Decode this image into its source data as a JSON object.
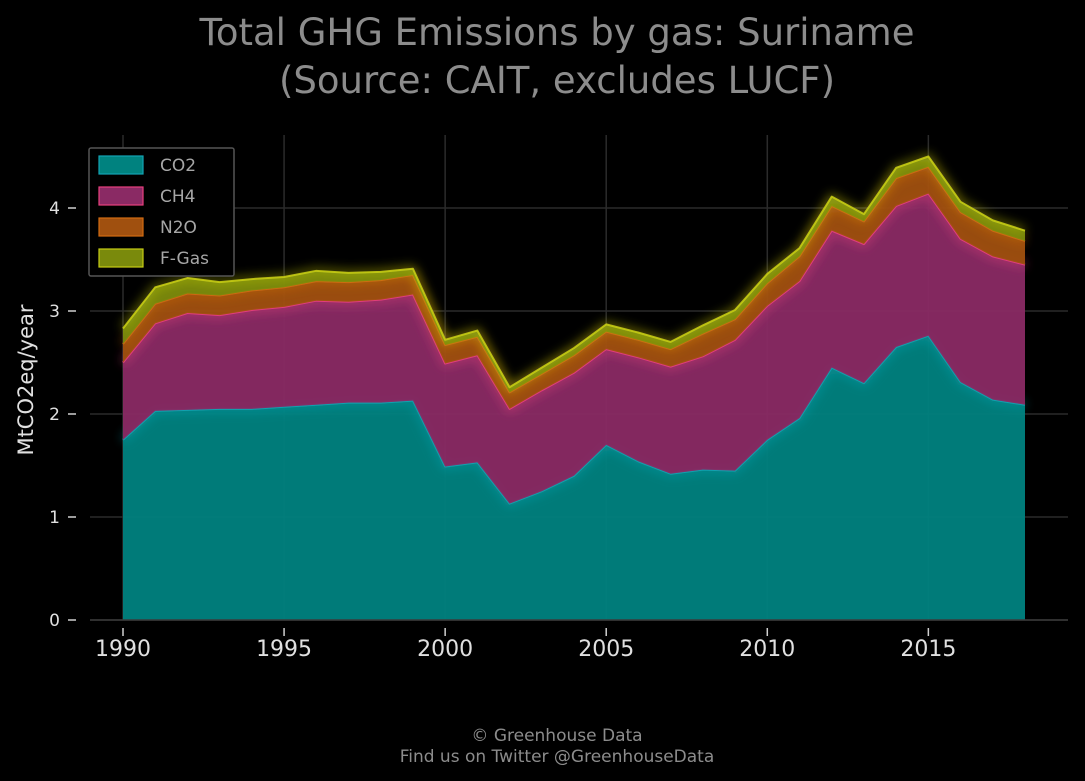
{
  "chart_data": {
    "type": "area",
    "stacked": true,
    "title": "Total GHG Emissions by gas: Suriname",
    "subtitle": "(Source: CAIT, excludes LUCF)",
    "xlabel": "",
    "ylabel": "MtCO2eq/year",
    "xlim": [
      1990,
      2018
    ],
    "ylim": [
      0,
      4.6
    ],
    "x_ticks": [
      1990,
      1995,
      2000,
      2005,
      2010,
      2015
    ],
    "y_ticks": [
      0,
      1,
      2,
      3,
      4
    ],
    "grid": true,
    "legend_position": "top-left",
    "x": [
      1990,
      1991,
      1992,
      1993,
      1994,
      1995,
      1996,
      1997,
      1998,
      1999,
      2000,
      2001,
      2002,
      2003,
      2004,
      2005,
      2006,
      2007,
      2008,
      2009,
      2010,
      2011,
      2012,
      2013,
      2014,
      2015,
      2016,
      2017,
      2018
    ],
    "series": [
      {
        "name": "CO2",
        "color": "#00827f",
        "line_color": "#13a4b4",
        "values": [
          1.75,
          2.03,
          2.04,
          2.05,
          2.05,
          2.07,
          2.09,
          2.11,
          2.11,
          2.13,
          1.49,
          1.53,
          1.13,
          1.25,
          1.4,
          1.7,
          1.54,
          1.42,
          1.46,
          1.45,
          1.75,
          1.96,
          2.45,
          2.3,
          2.65,
          2.76,
          2.31,
          2.14,
          2.09
        ]
      },
      {
        "name": "CH4",
        "color": "#8a2a64",
        "line_color": "#e8407e",
        "values": [
          0.75,
          0.85,
          0.94,
          0.91,
          0.96,
          0.97,
          1.01,
          0.98,
          1.0,
          1.03,
          1.0,
          1.04,
          0.92,
          0.98,
          1.0,
          0.93,
          1.01,
          1.04,
          1.1,
          1.27,
          1.3,
          1.33,
          1.33,
          1.35,
          1.37,
          1.38,
          1.39,
          1.39,
          1.36
        ]
      },
      {
        "name": "N2O",
        "color": "#a0500f",
        "line_color": "#d26a12",
        "values": [
          0.18,
          0.19,
          0.19,
          0.19,
          0.19,
          0.19,
          0.19,
          0.19,
          0.19,
          0.19,
          0.18,
          0.18,
          0.16,
          0.16,
          0.17,
          0.17,
          0.17,
          0.17,
          0.22,
          0.2,
          0.22,
          0.24,
          0.24,
          0.22,
          0.27,
          0.26,
          0.26,
          0.25,
          0.23
        ]
      },
      {
        "name": "F-Gas",
        "color": "#7a8a0c",
        "line_color": "#c6cc14",
        "values": [
          0.15,
          0.16,
          0.15,
          0.13,
          0.11,
          0.1,
          0.1,
          0.09,
          0.08,
          0.06,
          0.05,
          0.06,
          0.05,
          0.06,
          0.07,
          0.07,
          0.07,
          0.07,
          0.08,
          0.09,
          0.09,
          0.08,
          0.09,
          0.07,
          0.1,
          0.1,
          0.1,
          0.1,
          0.1
        ]
      }
    ]
  },
  "credits": {
    "line1": "© Greenhouse Data",
    "line2": "Find us on Twitter @GreenhouseData"
  }
}
